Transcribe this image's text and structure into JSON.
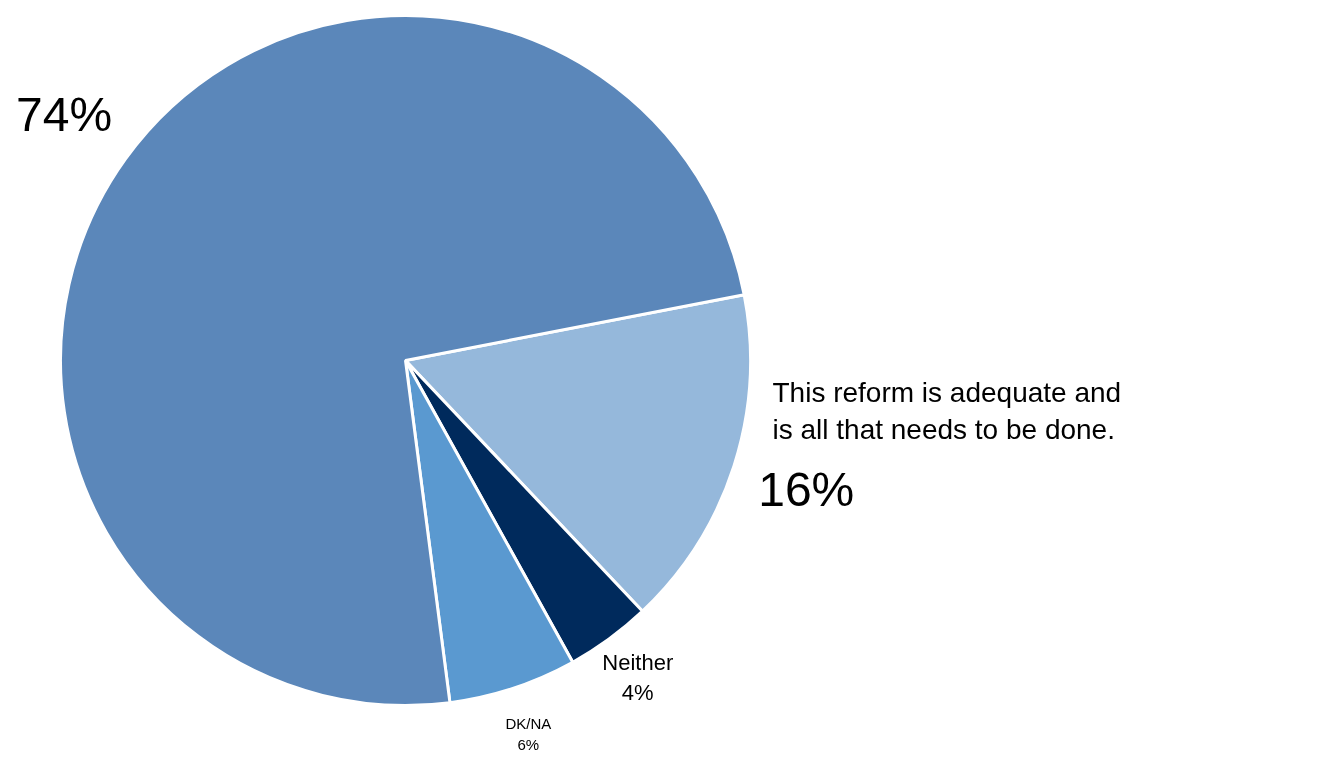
{
  "chart_data": {
    "type": "pie",
    "categories": [
      "This reform is adequate and is all that needs to be done.",
      "Neither",
      "DK/NA",
      null
    ],
    "values": [
      16,
      4,
      6,
      74
    ],
    "colors": [
      "#95b8db",
      "#002a5c",
      "#5a99d0",
      "#5b87ba"
    ],
    "value_labels": [
      "16%",
      "4%",
      "6%",
      "74%"
    ]
  }
}
